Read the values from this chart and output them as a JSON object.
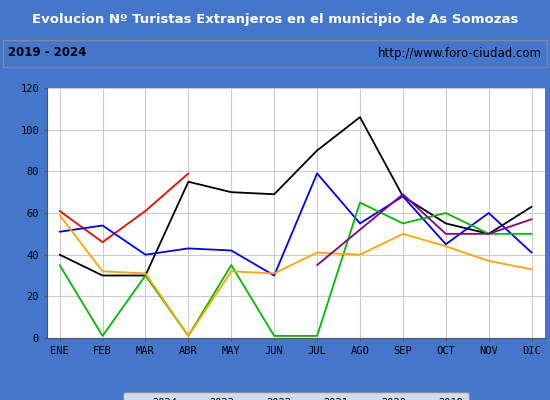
{
  "title": "Evolucion Nº Turistas Extranjeros en el municipio de As Somozas",
  "subtitle_left": "2019 - 2024",
  "subtitle_right": "http://www.foro-ciudad.com",
  "months": [
    "ENE",
    "FEB",
    "MAR",
    "ABR",
    "MAY",
    "JUN",
    "JUL",
    "AGO",
    "SEP",
    "OCT",
    "NOV",
    "DIC"
  ],
  "series": {
    "2024": [
      61,
      46,
      61,
      79,
      null,
      null,
      null,
      null,
      null,
      null,
      null,
      null
    ],
    "2023": [
      40,
      30,
      30,
      75,
      70,
      69,
      90,
      106,
      68,
      55,
      50,
      63
    ],
    "2022": [
      51,
      54,
      40,
      43,
      42,
      30,
      79,
      55,
      68,
      45,
      60,
      41
    ],
    "2021": [
      35,
      1,
      30,
      1,
      35,
      1,
      1,
      65,
      55,
      60,
      50,
      50
    ],
    "2020": [
      59,
      32,
      31,
      1,
      32,
      31,
      41,
      40,
      50,
      44,
      37,
      33
    ],
    "2019": [
      null,
      null,
      null,
      null,
      null,
      null,
      35,
      52,
      69,
      50,
      50,
      57
    ]
  },
  "colors": {
    "2024": "#ff0000",
    "2023": "#000000",
    "2022": "#0000ff",
    "2021": "#00bb00",
    "2020": "#ffa500",
    "2019": "#880088"
  },
  "ylim": [
    0,
    120
  ],
  "yticks": [
    0,
    20,
    40,
    60,
    80,
    100,
    120
  ],
  "title_bg_color": "#4477cc",
  "title_text_color": "#ffffff",
  "subtitle_bg_color": "#f0f0f0",
  "plot_bg_color": "#ffffff",
  "grid_color": "#cccccc",
  "border_color": "#4477cc",
  "legend_bg_color": "#f5f5f5"
}
